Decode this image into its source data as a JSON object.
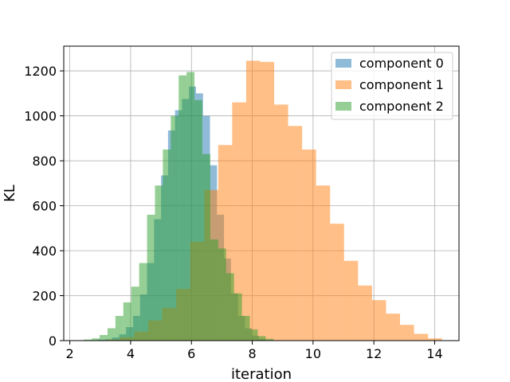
{
  "chart_data": {
    "type": "bar",
    "subtype": "overlaid-histogram",
    "title": "",
    "xlabel": "iteration",
    "ylabel": "KL",
    "xlim": [
      1.8,
      14.8
    ],
    "ylim": [
      0,
      1310
    ],
    "x_ticks": [
      "2",
      "4",
      "6",
      "8",
      "10",
      "12",
      "14"
    ],
    "y_ticks": [
      "0",
      "200",
      "400",
      "600",
      "800",
      "1000",
      "1200"
    ],
    "grid": true,
    "legend_position": "top-right",
    "series": [
      {
        "name": "component 0",
        "color": "#1f77b4",
        "alpha": 0.5,
        "bin_edges": [
          2.7,
          2.93,
          3.16,
          3.39,
          3.62,
          3.85,
          4.08,
          4.31,
          4.54,
          4.77,
          5.0,
          5.23,
          5.46,
          5.69,
          5.92,
          6.15,
          6.38,
          6.61,
          6.84,
          7.07,
          7.3,
          7.53,
          7.76,
          7.99,
          8.22,
          8.45
        ],
        "counts": [
          2,
          4,
          6,
          14,
          28,
          60,
          110,
          205,
          345,
          540,
          735,
          935,
          1025,
          1075,
          1130,
          1100,
          1000,
          780,
          560,
          365,
          210,
          110,
          55,
          22,
          8
        ]
      },
      {
        "name": "component 1",
        "color": "#ff7f0e",
        "alpha": 0.5,
        "bin_edges": [
          3.2,
          3.66,
          4.12,
          4.58,
          5.04,
          5.5,
          5.96,
          6.42,
          6.88,
          7.34,
          7.8,
          8.26,
          8.72,
          9.18,
          9.64,
          10.1,
          10.56,
          11.02,
          11.48,
          11.94,
          12.4,
          12.86,
          13.32,
          13.78,
          14.24
        ],
        "counts": [
          5,
          15,
          40,
          90,
          145,
          230,
          440,
          670,
          870,
          1060,
          1245,
          1240,
          1050,
          955,
          850,
          690,
          520,
          355,
          245,
          180,
          120,
          70,
          30,
          10
        ]
      },
      {
        "name": "component 2",
        "color": "#2ca02c",
        "alpha": 0.5,
        "bin_edges": [
          2.2,
          2.46,
          2.72,
          2.98,
          3.24,
          3.5,
          3.76,
          4.02,
          4.28,
          4.54,
          4.8,
          5.06,
          5.32,
          5.58,
          5.84,
          6.1,
          6.36,
          6.62,
          6.88,
          7.14,
          7.4,
          7.66,
          7.92,
          8.18,
          8.44,
          8.7
        ],
        "counts": [
          2,
          5,
          10,
          25,
          55,
          110,
          170,
          240,
          345,
          560,
          690,
          850,
          1000,
          1180,
          1195,
          1070,
          830,
          450,
          410,
          300,
          210,
          110,
          50,
          20,
          8
        ]
      }
    ]
  }
}
